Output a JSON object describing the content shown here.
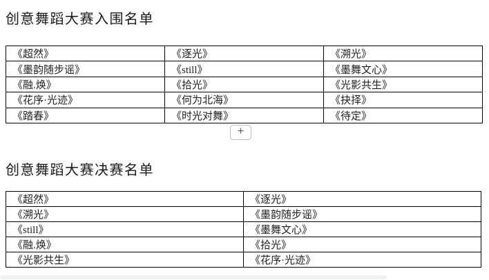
{
  "document": {
    "sections": [
      {
        "title": "创意舞蹈大赛入围名单",
        "table_rows": [
          [
            "《超然》",
            "《逐光》",
            "《溯光》"
          ],
          [
            "《墨韵随步谣》",
            "《still》",
            "《墨舞文心》"
          ],
          [
            "《融.焕》",
            "《拾光》",
            "《光影共生》"
          ],
          [
            "《花序·光迹》",
            "《何为北海》",
            "《抉择》"
          ],
          [
            "《踏春》",
            "《时光对舞》",
            "《待定》"
          ]
        ]
      },
      {
        "title": "创意舞蹈大赛决赛名单",
        "table_rows": [
          [
            "《超然》",
            "《逐光》"
          ],
          [
            "《溯光》",
            "《墨韵随步谣》"
          ],
          [
            "《still》",
            "《墨舞文心》"
          ],
          [
            "《融.焕》",
            "《拾光》"
          ],
          [
            "《光影共生》",
            "《花序·光迹》"
          ]
        ]
      }
    ],
    "insert_button_label": "+"
  },
  "colors": {
    "page_background": "#ffffff",
    "table_border": "#000000",
    "text": "#1a1a1a",
    "button_border": "#b6bbbb",
    "button_plus": "#555555",
    "scrollbar_track": "#f0f3f3"
  }
}
